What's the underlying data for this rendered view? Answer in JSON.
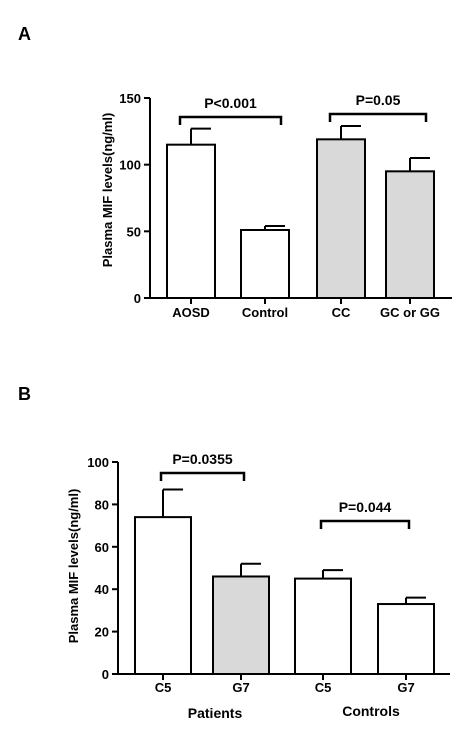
{
  "chart_data": [
    {
      "panel": "A",
      "type": "bar",
      "ylabel": "Plasma MIF levels(ng/ml)",
      "ylim": [
        0,
        150
      ],
      "yticks": [
        0,
        50,
        100,
        150
      ],
      "categories": [
        "AOSD",
        "Control",
        "CC",
        "GC or GG"
      ],
      "values": [
        115,
        51,
        119,
        95
      ],
      "errors": [
        12,
        3,
        10,
        10
      ],
      "colors": [
        "#ffffff",
        "#ffffff",
        "#d9d9d9",
        "#d9d9d9"
      ],
      "annotations": [
        {
          "text": "P<0.001",
          "from": 0,
          "to": 1
        },
        {
          "text": "P=0.05",
          "from": 2,
          "to": 3
        }
      ]
    },
    {
      "panel": "B",
      "type": "bar",
      "ylabel": "Plasma MIF levels(ng/ml)",
      "ylim": [
        0,
        100
      ],
      "yticks": [
        0,
        20,
        40,
        60,
        80,
        100
      ],
      "categories": [
        "C5",
        "G7",
        "C5",
        "G7"
      ],
      "groups": [
        "Patients",
        "Controls"
      ],
      "values": [
        74,
        46,
        45,
        33
      ],
      "errors": [
        13,
        6,
        4,
        3
      ],
      "colors": [
        "#ffffff",
        "#d9d9d9",
        "#ffffff",
        "#ffffff"
      ],
      "annotations": [
        {
          "text": "P=0.0355",
          "from": 0,
          "to": 1
        },
        {
          "text": "P=0.044",
          "from": 2,
          "to": 3
        }
      ]
    }
  ]
}
